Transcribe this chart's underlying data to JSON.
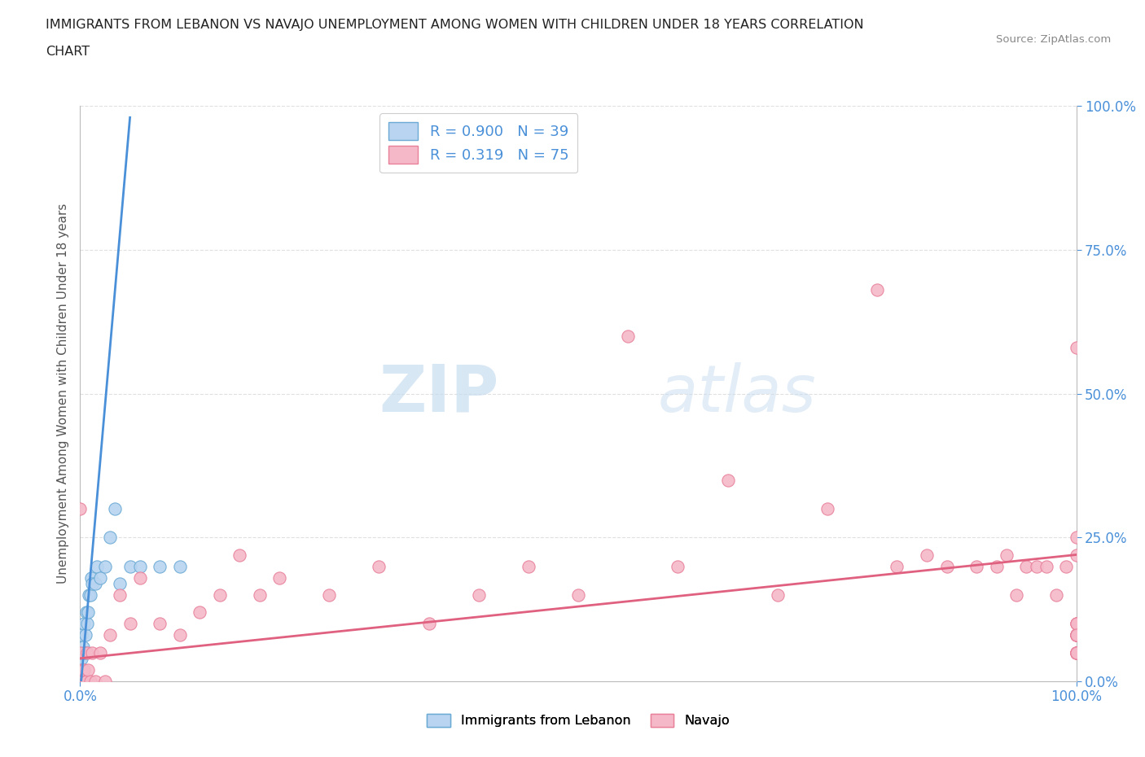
{
  "title_line1": "IMMIGRANTS FROM LEBANON VS NAVAJO UNEMPLOYMENT AMONG WOMEN WITH CHILDREN UNDER 18 YEARS CORRELATION",
  "title_line2": "CHART",
  "source_text": "Source: ZipAtlas.com",
  "ylabel": "Unemployment Among Women with Children Under 18 years",
  "watermark_zip": "ZIP",
  "watermark_atlas": "atlas",
  "legend_entries": [
    {
      "label": "Immigrants from Lebanon",
      "R": 0.9,
      "N": 39,
      "face_color": "#b8d4f0",
      "edge_color": "#6aaad4",
      "line_color": "#4a90d9"
    },
    {
      "label": "Navajo",
      "R": 0.319,
      "N": 75,
      "face_color": "#f5b8c8",
      "edge_color": "#e8809a",
      "line_color": "#e06080"
    }
  ],
  "xlim": [
    0.0,
    1.0
  ],
  "ylim": [
    0.0,
    1.0
  ],
  "ytick_values": [
    0.0,
    0.25,
    0.5,
    0.75,
    1.0
  ],
  "ytick_labels": [
    "0.0%",
    "25.0%",
    "50.0%",
    "75.0%",
    "100.0%"
  ],
  "xtick_values": [
    0.0,
    1.0
  ],
  "xtick_labels": [
    "0.0%",
    "100.0%"
  ],
  "background_color": "#ffffff",
  "grid_color": "#dddddd",
  "title_color": "#222222",
  "axis_label_color": "#555555",
  "tick_color": "#4a90d9",
  "lebanon_x": [
    0.0,
    0.0,
    0.0,
    0.0,
    0.0,
    0.001,
    0.001,
    0.001,
    0.001,
    0.001,
    0.002,
    0.002,
    0.002,
    0.003,
    0.003,
    0.003,
    0.004,
    0.004,
    0.005,
    0.005,
    0.006,
    0.006,
    0.007,
    0.008,
    0.009,
    0.01,
    0.011,
    0.012,
    0.015,
    0.017,
    0.02,
    0.025,
    0.03,
    0.035,
    0.04,
    0.05,
    0.06,
    0.08,
    0.1
  ],
  "lebanon_y": [
    0.0,
    0.0,
    0.0,
    0.02,
    0.05,
    0.0,
    0.0,
    0.02,
    0.04,
    0.08,
    0.0,
    0.02,
    0.05,
    0.0,
    0.02,
    0.06,
    0.05,
    0.1,
    0.0,
    0.08,
    0.05,
    0.12,
    0.1,
    0.12,
    0.15,
    0.15,
    0.18,
    0.17,
    0.17,
    0.2,
    0.18,
    0.2,
    0.25,
    0.3,
    0.17,
    0.2,
    0.2,
    0.2,
    0.2
  ],
  "lb_line_x": [
    0.0,
    0.05
  ],
  "lb_line_y": [
    -0.02,
    0.98
  ],
  "navajo_x": [
    0.0,
    0.0,
    0.0,
    0.001,
    0.001,
    0.002,
    0.003,
    0.004,
    0.005,
    0.006,
    0.007,
    0.008,
    0.01,
    0.012,
    0.015,
    0.02,
    0.025,
    0.03,
    0.04,
    0.05,
    0.06,
    0.08,
    0.1,
    0.12,
    0.14,
    0.16,
    0.18,
    0.2,
    0.25,
    0.3,
    0.35,
    0.4,
    0.45,
    0.5,
    0.55,
    0.6,
    0.65,
    0.7,
    0.75,
    0.8,
    0.82,
    0.85,
    0.87,
    0.9,
    0.92,
    0.93,
    0.94,
    0.95,
    0.96,
    0.97,
    0.98,
    0.99,
    1.0,
    1.0,
    1.0,
    1.0,
    1.0,
    1.0,
    1.0,
    1.0,
    1.0,
    1.0,
    1.0,
    1.0,
    1.0,
    1.0,
    1.0,
    1.0,
    1.0,
    1.0,
    1.0,
    1.0,
    1.0,
    1.0,
    1.0
  ],
  "navajo_y": [
    0.3,
    0.05,
    0.0,
    0.0,
    0.02,
    0.0,
    0.0,
    0.02,
    0.0,
    0.0,
    0.05,
    0.02,
    0.0,
    0.05,
    0.0,
    0.05,
    0.0,
    0.08,
    0.15,
    0.1,
    0.18,
    0.1,
    0.08,
    0.12,
    0.15,
    0.22,
    0.15,
    0.18,
    0.15,
    0.2,
    0.1,
    0.15,
    0.2,
    0.15,
    0.6,
    0.2,
    0.35,
    0.15,
    0.3,
    0.68,
    0.2,
    0.22,
    0.2,
    0.2,
    0.2,
    0.22,
    0.15,
    0.2,
    0.2,
    0.2,
    0.15,
    0.2,
    0.05,
    0.05,
    0.08,
    0.05,
    0.05,
    0.08,
    0.1,
    0.08,
    0.05,
    0.05,
    0.08,
    0.08,
    0.1,
    0.08,
    0.05,
    0.08,
    0.1,
    0.05,
    0.05,
    0.08,
    0.58,
    0.22,
    0.25
  ],
  "nv_line_x": [
    0.0,
    1.0
  ],
  "nv_line_y": [
    0.04,
    0.22
  ]
}
